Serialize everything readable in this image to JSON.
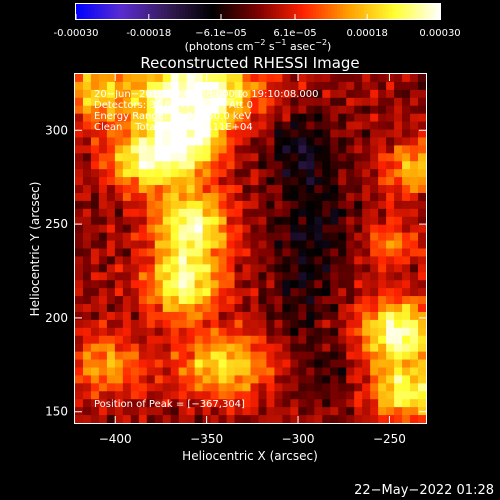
{
  "colorbar": {
    "tick_labels": [
      "-0.00030",
      "-0.00018",
      "−6.1e−05",
      "6.1e−05",
      "0.00018",
      "0.00030"
    ],
    "tick_values": [
      -0.0003,
      -0.00018,
      -6.1e-05,
      6.1e-05,
      0.00018,
      0.0003
    ],
    "range": [
      -0.0003,
      0.0003
    ],
    "unit_parts": {
      "open": "(photons cm",
      "exp1": "−2",
      "mid1": " s",
      "exp2": "−1",
      "mid2": " asec",
      "exp3": "−2",
      "close": ")"
    }
  },
  "chart_data": {
    "type": "heatmap",
    "title": "Reconstructed RHESSI Image",
    "xlabel": "Heliocentric X (arcsec)",
    "ylabel": "Heliocentric Y (arcsec)",
    "xlim": [
      -422,
      -230
    ],
    "ylim": [
      144,
      330
    ],
    "x_ticks": [
      -400,
      -350,
      -300,
      -250
    ],
    "y_ticks": [
      150,
      200,
      250,
      300
    ],
    "x_tick_labels": [
      "−400",
      "−350",
      "−300",
      "−250"
    ],
    "y_tick_labels": [
      "150",
      "200",
      "250",
      "300"
    ],
    "annotations": [
      "20−Jun−2015 19:04:08.000 to 19:10:08.000",
      "Detectors: 3F 6F 7F 8F 9F, Att 0",
      "Energy Range: 25.0 − 50.0 keV",
      "Clean    Total Counts: 1.11E+04"
    ],
    "peak_label": "Position of Peak = [−367,304]",
    "peak": [
      -367,
      304
    ],
    "colormap": [
      "#0000ff",
      "#5a2cd0",
      "#351b58",
      "#000000",
      "#7d0000",
      "#ff2200",
      "#ffa000",
      "#ffff30",
      "#ffffff"
    ],
    "colormap_name": "blue-red-yellow",
    "hot_regions": [
      {
        "x": -355,
        "y": 320,
        "sx": 22,
        "sy": 12,
        "w": 1.0
      },
      {
        "x": -362,
        "y": 298,
        "sx": 14,
        "sy": 14,
        "w": 1.0
      },
      {
        "x": -385,
        "y": 283,
        "sx": 14,
        "sy": 11,
        "w": 0.7
      },
      {
        "x": -358,
        "y": 250,
        "sx": 14,
        "sy": 13,
        "w": 0.85
      },
      {
        "x": -362,
        "y": 218,
        "sx": 14,
        "sy": 13,
        "w": 0.8
      },
      {
        "x": -340,
        "y": 175,
        "sx": 18,
        "sy": 12,
        "w": 0.65
      },
      {
        "x": -405,
        "y": 175,
        "sx": 14,
        "sy": 12,
        "w": 0.45
      },
      {
        "x": -410,
        "y": 320,
        "sx": 14,
        "sy": 12,
        "w": 0.55
      },
      {
        "x": -245,
        "y": 192,
        "sx": 14,
        "sy": 12,
        "w": 0.95
      },
      {
        "x": -240,
        "y": 160,
        "sx": 14,
        "sy": 10,
        "w": 0.75
      },
      {
        "x": -235,
        "y": 280,
        "sx": 12,
        "sy": 10,
        "w": 0.55
      },
      {
        "x": -248,
        "y": 240,
        "sx": 10,
        "sy": 9,
        "w": 0.4
      }
    ],
    "cold_regions": [
      {
        "x": -298,
        "y": 290,
        "sx": 12,
        "sy": 14,
        "w": 0.9
      },
      {
        "x": -290,
        "y": 250,
        "sx": 14,
        "sy": 18,
        "w": 0.7
      },
      {
        "x": -300,
        "y": 210,
        "sx": 12,
        "sy": 20,
        "w": 0.55
      },
      {
        "x": -285,
        "y": 170,
        "sx": 12,
        "sy": 12,
        "w": 0.45
      }
    ]
  },
  "timestamp": "22−May−2022 01:28"
}
